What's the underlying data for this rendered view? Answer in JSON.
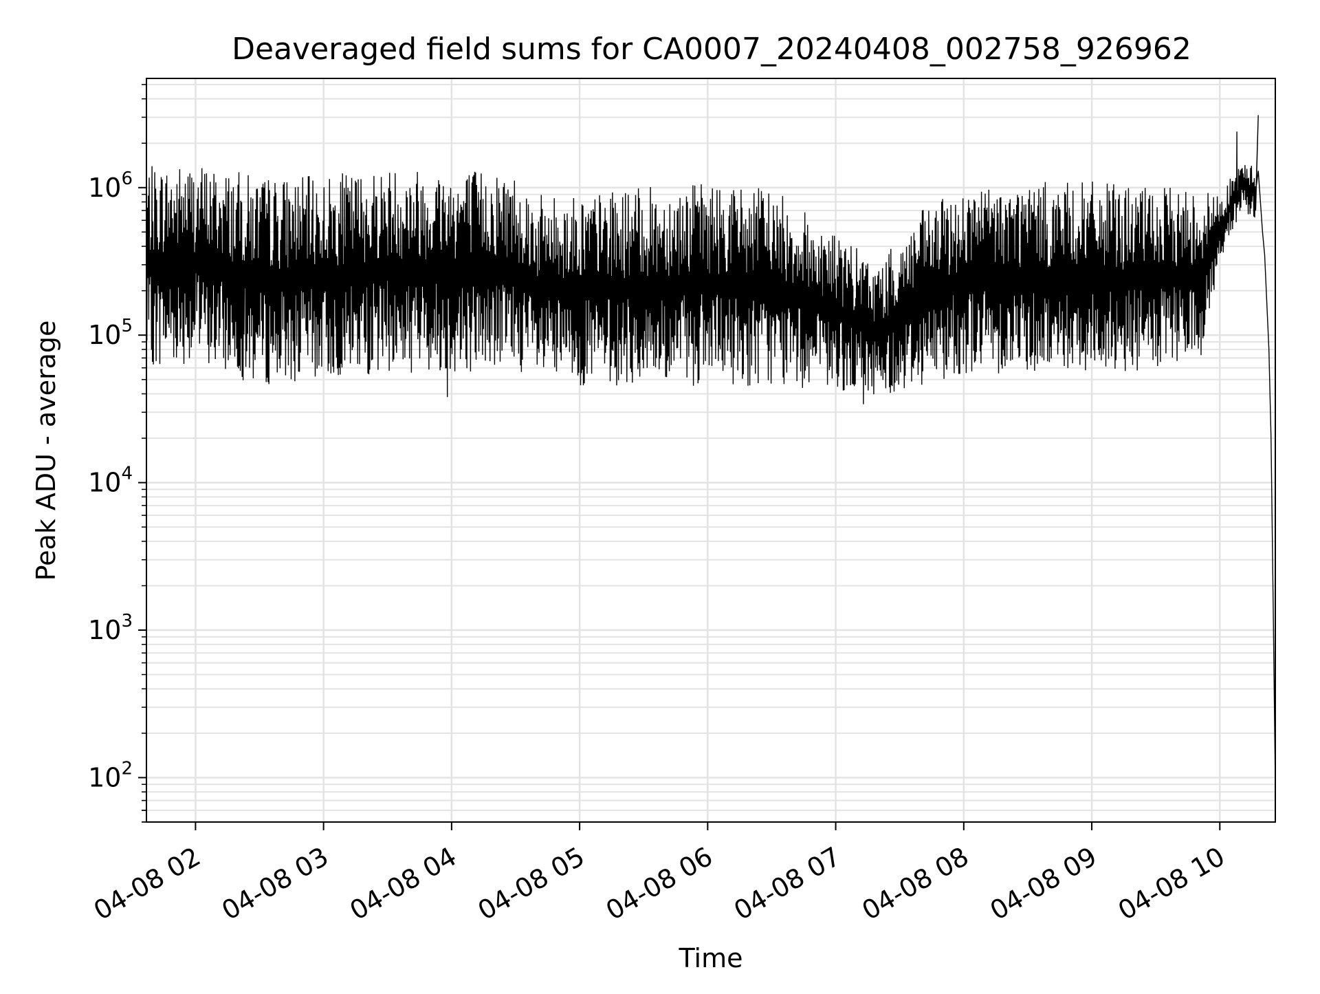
{
  "chart_data": {
    "type": "line",
    "title": "Deaveraged field sums for CA0007_20240408_002758_926962",
    "xlabel": "Time",
    "ylabel": "Peak ADU - average",
    "yscale": "log",
    "ylim": [
      50,
      5500000
    ],
    "xlim": [
      "04-08 01:37",
      "04-08 10:26"
    ],
    "grid": true,
    "line_color": "#000000",
    "x_ticks": [
      {
        "label": "04-08 02",
        "t": "04-08 02:00"
      },
      {
        "label": "04-08 03",
        "t": "04-08 03:00"
      },
      {
        "label": "04-08 04",
        "t": "04-08 04:00"
      },
      {
        "label": "04-08 05",
        "t": "04-08 05:00"
      },
      {
        "label": "04-08 06",
        "t": "04-08 06:00"
      },
      {
        "label": "04-08 07",
        "t": "04-08 07:00"
      },
      {
        "label": "04-08 08",
        "t": "04-08 08:00"
      },
      {
        "label": "04-08 09",
        "t": "04-08 09:00"
      },
      {
        "label": "04-08 10",
        "t": "04-08 10:00"
      }
    ],
    "y_ticks": [
      {
        "base": "10",
        "exp": "2",
        "value": 100
      },
      {
        "base": "10",
        "exp": "3",
        "value": 1000
      },
      {
        "base": "10",
        "exp": "4",
        "value": 10000
      },
      {
        "base": "10",
        "exp": "5",
        "value": 100000
      },
      {
        "base": "10",
        "exp": "6",
        "value": 1000000
      }
    ],
    "series": [
      {
        "envelope": [
          {
            "t": "04-08 01:37",
            "min": 60000,
            "max": 1400000
          },
          {
            "t": "04-08 02:00",
            "min": 65000,
            "max": 1500000
          },
          {
            "t": "04-08 02:30",
            "min": 45000,
            "max": 1200000
          },
          {
            "t": "04-08 03:00",
            "min": 50000,
            "max": 1200000
          },
          {
            "t": "04-08 03:30",
            "min": 55000,
            "max": 1400000
          },
          {
            "t": "04-08 04:00",
            "min": 55000,
            "max": 1400000
          },
          {
            "t": "04-08 04:30",
            "min": 60000,
            "max": 1300000
          },
          {
            "t": "04-08 04:40",
            "min": 45000,
            "max": 900000
          },
          {
            "t": "04-08 05:00",
            "min": 45000,
            "max": 900000
          },
          {
            "t": "04-08 05:30",
            "min": 45000,
            "max": 1000000
          },
          {
            "t": "04-08 06:00",
            "min": 45000,
            "max": 1100000
          },
          {
            "t": "04-08 06:30",
            "min": 45000,
            "max": 1000000
          },
          {
            "t": "04-08 07:00",
            "min": 42000,
            "max": 500000
          },
          {
            "t": "04-08 07:20",
            "min": 38000,
            "max": 300000
          },
          {
            "t": "04-08 07:40",
            "min": 45000,
            "max": 700000
          },
          {
            "t": "04-08 08:00",
            "min": 55000,
            "max": 1000000
          },
          {
            "t": "04-08 08:30",
            "min": 55000,
            "max": 1100000
          },
          {
            "t": "04-08 09:00",
            "min": 55000,
            "max": 1100000
          },
          {
            "t": "04-08 09:30",
            "min": 55000,
            "max": 1000000
          },
          {
            "t": "04-08 09:52",
            "min": 70000,
            "max": 1000000
          },
          {
            "t": "04-08 10:00",
            "min": 300000,
            "max": 900000
          },
          {
            "t": "04-08 10:10",
            "min": 700000,
            "max": 1500000
          },
          {
            "t": "04-08 10:17",
            "min": 600000,
            "max": 1400000
          }
        ],
        "peaks": [
          {
            "t": "04-08 03:58",
            "value": 38000
          },
          {
            "t": "04-08 07:13",
            "value": 34000
          },
          {
            "t": "04-08 10:08",
            "value": 2400000
          },
          {
            "t": "04-08 10:18",
            "value": 3100000
          }
        ],
        "tail": [
          {
            "t": "04-08 10:18",
            "value": 1300000
          },
          {
            "t": "04-08 10:20",
            "value": 500000
          },
          {
            "t": "04-08 10:21",
            "value": 350000
          },
          {
            "t": "04-08 10:23",
            "value": 80000
          },
          {
            "t": "04-08 10:24",
            "value": 20000
          },
          {
            "t": "04-08 10:25",
            "value": 1500
          },
          {
            "t": "04-08 10:26",
            "value": 90
          }
        ]
      }
    ]
  }
}
